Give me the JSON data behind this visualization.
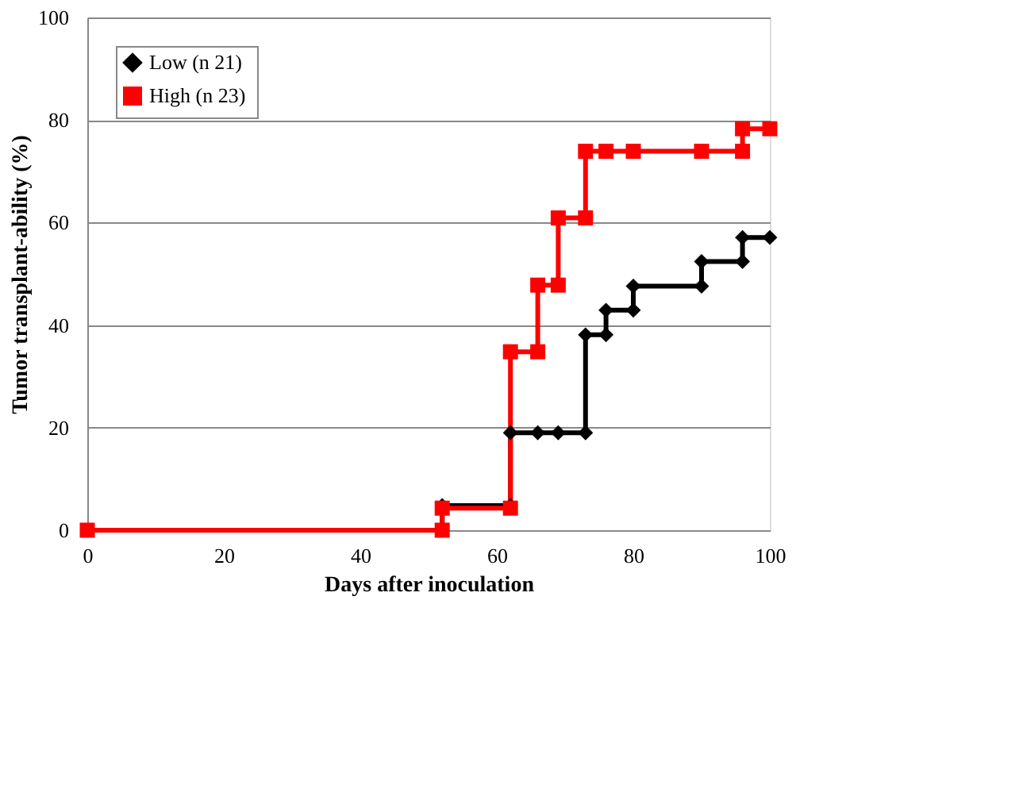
{
  "chart_data": {
    "type": "step",
    "xlabel": "Days after inoculation",
    "ylabel": "Tumor transplant-ability (%)",
    "xlim": [
      0,
      100
    ],
    "xticks": [
      0,
      20,
      40,
      60,
      80,
      100
    ],
    "ylim": [
      0,
      100
    ],
    "yticks": [
      0,
      20,
      40,
      60,
      80,
      100
    ],
    "grid": "y",
    "legend": "top left",
    "series": [
      {
        "name": "Low (n  21)",
        "color": "#000000",
        "marker": "diamond",
        "x": [
          0,
          52,
          52,
          62,
          62,
          66,
          69,
          73,
          73,
          76,
          76,
          80,
          80,
          90,
          90,
          96,
          96,
          100
        ],
        "values": [
          0,
          0,
          4.8,
          4.8,
          19,
          19,
          19,
          19,
          38.1,
          38.1,
          42.9,
          42.9,
          47.6,
          47.6,
          52.4,
          52.4,
          57.1,
          57.1
        ]
      },
      {
        "name": "High (n  23)",
        "color": "#ff0000",
        "marker": "square",
        "x": [
          0,
          52,
          52,
          62,
          62,
          66,
          66,
          69,
          69,
          73,
          73,
          76,
          80,
          90,
          96,
          96,
          100
        ],
        "values": [
          0,
          0,
          4.3,
          4.3,
          34.8,
          34.8,
          47.8,
          47.8,
          60.9,
          60.9,
          73.9,
          73.9,
          73.9,
          73.9,
          73.9,
          78.3,
          78.3
        ]
      }
    ]
  }
}
